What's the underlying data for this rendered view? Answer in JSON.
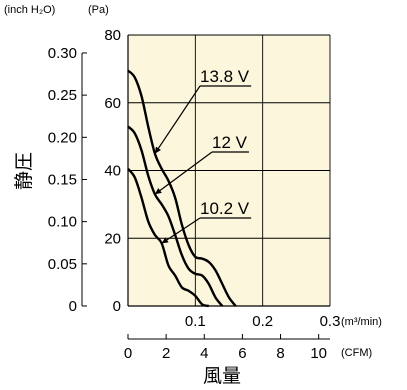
{
  "chart_data": {
    "type": "line",
    "title": "",
    "xlabel": "風量",
    "ylabel": "静圧",
    "x_unit_primary": "(m³/min)",
    "x_unit_secondary": "(CFM)",
    "y_unit_left": "(inch H₂O)",
    "y_unit_right": "(Pa)",
    "xlim": [
      0,
      0.3
    ],
    "ylim": [
      0,
      80
    ],
    "x_ticks": [
      0.1,
      0.2,
      0.3
    ],
    "x_tick_labels": [
      "0.1",
      "0.2",
      "0.3"
    ],
    "cfm_ticks": [
      0,
      2,
      4,
      6,
      8,
      10
    ],
    "cfm_tick_labels": [
      "0",
      "2",
      "4",
      "6",
      "8",
      "10"
    ],
    "pa_ticks": [
      0,
      20,
      40,
      60,
      80
    ],
    "pa_tick_labels": [
      "0",
      "20",
      "40",
      "60",
      "80"
    ],
    "inch_ticks": [
      0,
      0.05,
      0.1,
      0.15,
      0.2,
      0.25,
      0.3
    ],
    "inch_tick_labels": [
      "0",
      "0.05",
      "0.10",
      "0.15",
      "0.20",
      "0.25",
      "0.30"
    ],
    "grid": true,
    "background": "#fbf6dc",
    "line_color": "#000000",
    "series": [
      {
        "name": "13.8 V",
        "x": [
          0,
          0.01,
          0.02,
          0.03,
          0.04,
          0.05,
          0.06,
          0.07,
          0.08,
          0.09,
          0.1,
          0.11,
          0.12,
          0.13,
          0.14,
          0.15,
          0.16
        ],
        "y": [
          69.5,
          67.5,
          62,
          53,
          45,
          40.5,
          37,
          32,
          24,
          18,
          14.5,
          14,
          13,
          10.5,
          6.5,
          2.5,
          0
        ]
      },
      {
        "name": "12 V",
        "x": [
          0,
          0.01,
          0.02,
          0.03,
          0.04,
          0.05,
          0.06,
          0.07,
          0.08,
          0.09,
          0.1,
          0.11,
          0.12,
          0.13,
          0.14
        ],
        "y": [
          53,
          51,
          46,
          38.5,
          33,
          30,
          26.5,
          21,
          15,
          11,
          9.5,
          9,
          6.5,
          2.5,
          0
        ]
      },
      {
        "name": "10.2 V",
        "x": [
          0,
          0.01,
          0.02,
          0.03,
          0.04,
          0.05,
          0.06,
          0.07,
          0.08,
          0.09,
          0.1,
          0.11,
          0.12
        ],
        "y": [
          40.5,
          38,
          32,
          25,
          21,
          18.5,
          12,
          9,
          5.5,
          4.5,
          3,
          0.5,
          0
        ]
      }
    ],
    "annotations": [
      {
        "label": "13.8 V",
        "series": "13.8 V"
      },
      {
        "label": "12 V",
        "series": "12 V"
      },
      {
        "label": "10.2 V",
        "series": "10.2 V"
      }
    ]
  }
}
